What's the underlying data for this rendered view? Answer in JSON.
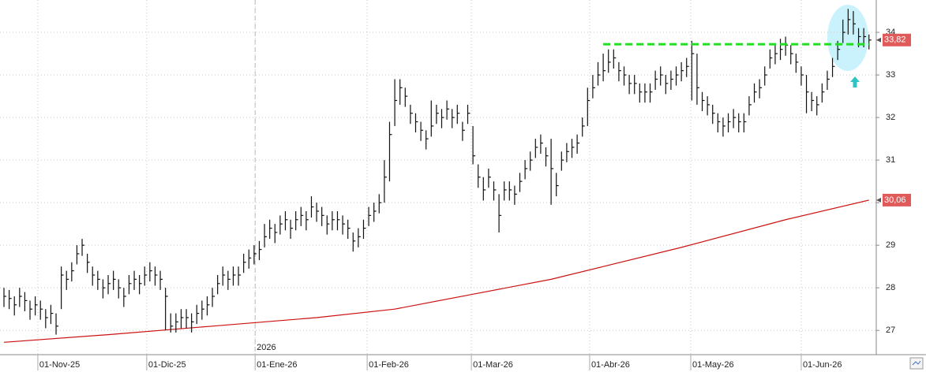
{
  "chart_data": {
    "type": "ohlc",
    "xlim": [
      -0.76,
      167.4
    ],
    "ylim": [
      26.43,
      34.76
    ],
    "yticks": [
      27,
      28,
      29,
      30,
      31,
      32,
      33,
      34
    ],
    "xticks": [
      {
        "value": 6.5,
        "label": "01-Nov-25"
      },
      {
        "value": 27.4,
        "label": "01-Dic-25"
      },
      {
        "value": 48.2,
        "label": "01-Ene-26"
      },
      {
        "value": 69.7,
        "label": "01-Feb-26"
      },
      {
        "value": 89.7,
        "label": "01-Mar-26"
      },
      {
        "value": 112.4,
        "label": "01-Abr-26"
      },
      {
        "value": 131.8,
        "label": "01-May-26"
      },
      {
        "value": 153,
        "label": "01-Jun-26"
      }
    ],
    "grid": true,
    "year_marker": {
      "x": 48.2,
      "label": "2026"
    },
    "price": {
      "color": "#111111",
      "last_label": "33,82",
      "high": [
        28.0,
        27.95,
        27.8,
        28.0,
        27.9,
        27.7,
        27.8,
        27.7,
        27.5,
        27.6,
        27.4,
        28.5,
        28.4,
        28.6,
        29.0,
        29.15,
        28.8,
        28.5,
        28.4,
        28.2,
        28.3,
        28.4,
        28.2,
        28.0,
        28.3,
        28.4,
        28.3,
        28.5,
        28.6,
        28.5,
        28.4,
        28.0,
        27.4,
        27.4,
        27.5,
        27.5,
        27.4,
        27.6,
        27.7,
        27.8,
        28.0,
        28.3,
        28.5,
        28.4,
        28.5,
        28.5,
        28.8,
        28.9,
        29.0,
        29.1,
        29.5,
        29.6,
        29.5,
        29.7,
        29.8,
        29.6,
        29.8,
        29.9,
        29.8,
        30.15,
        30.0,
        29.9,
        29.7,
        29.8,
        29.8,
        29.7,
        29.6,
        29.3,
        29.4,
        29.6,
        29.9,
        30.0,
        30.2,
        31.0,
        31.9,
        32.9,
        32.9,
        32.7,
        32.3,
        32.1,
        31.9,
        31.7,
        32.4,
        32.3,
        32.2,
        32.4,
        32.2,
        32.3,
        31.9,
        32.3,
        31.8,
        30.9,
        30.6,
        30.8,
        30.5,
        30.2,
        30.5,
        30.5,
        30.4,
        30.7,
        31.0,
        31.2,
        31.5,
        31.6,
        31.3,
        31.5,
        30.7,
        31.2,
        31.4,
        31.5,
        31.6,
        32.0,
        32.7,
        33.0,
        33.3,
        33.5,
        33.6,
        33.6,
        33.3,
        33.2,
        33.0,
        33.0,
        32.8,
        32.8,
        32.8,
        33.1,
        33.2,
        33.0,
        33.1,
        33.2,
        33.3,
        33.4,
        33.8,
        33.5,
        32.6,
        32.5,
        32.3,
        32.1,
        32.0,
        32.1,
        32.2,
        32.1,
        32.1,
        32.5,
        32.8,
        32.9,
        33.2,
        33.6,
        33.7,
        33.85,
        33.9,
        33.7,
        33.5,
        33.2,
        33.0,
        32.6,
        32.5,
        32.8,
        33.1,
        33.4,
        33.8,
        34.3,
        34.55,
        34.5,
        34.1,
        34.1,
        33.95
      ],
      "low": [
        27.55,
        27.5,
        27.35,
        27.55,
        27.45,
        27.25,
        27.35,
        27.25,
        27.05,
        27.15,
        26.9,
        27.5,
        27.95,
        28.15,
        28.55,
        28.75,
        28.35,
        28.05,
        27.95,
        27.75,
        27.85,
        27.95,
        27.75,
        27.55,
        27.85,
        27.95,
        27.85,
        28.05,
        28.15,
        28.05,
        27.95,
        27.0,
        26.95,
        26.95,
        27.05,
        27.05,
        26.95,
        27.15,
        27.25,
        27.35,
        27.55,
        27.85,
        28.05,
        27.95,
        28.05,
        28.05,
        28.35,
        28.45,
        28.55,
        28.65,
        28.95,
        29.15,
        29.05,
        29.25,
        29.35,
        29.15,
        29.35,
        29.45,
        29.35,
        29.65,
        29.55,
        29.45,
        29.25,
        29.35,
        29.35,
        29.25,
        29.15,
        28.85,
        28.95,
        29.15,
        29.45,
        29.55,
        29.75,
        30.0,
        30.5,
        31.8,
        32.3,
        32.25,
        31.85,
        31.65,
        31.45,
        31.25,
        31.55,
        31.85,
        31.75,
        31.95,
        31.75,
        31.85,
        31.45,
        31.85,
        30.9,
        30.35,
        30.05,
        30.35,
        30.05,
        29.3,
        30.05,
        30.05,
        29.95,
        30.25,
        30.55,
        30.75,
        31.05,
        31.15,
        30.85,
        29.95,
        30.15,
        30.75,
        30.95,
        31.05,
        31.15,
        31.55,
        31.8,
        32.45,
        32.75,
        32.85,
        33.05,
        33.15,
        32.85,
        32.75,
        32.55,
        32.55,
        32.35,
        32.35,
        32.35,
        32.65,
        32.75,
        32.55,
        32.65,
        32.75,
        32.85,
        32.95,
        32.4,
        32.3,
        32.15,
        32.05,
        31.85,
        31.65,
        31.55,
        31.65,
        31.75,
        31.65,
        31.65,
        32.05,
        32.35,
        32.45,
        32.75,
        33.15,
        33.25,
        33.35,
        33.45,
        33.25,
        33.05,
        32.75,
        32.1,
        32.15,
        32.05,
        32.35,
        32.65,
        32.95,
        33.35,
        33.75,
        33.95,
        33.95,
        33.65,
        33.65,
        33.6
      ],
      "close": [
        27.8,
        27.75,
        27.6,
        27.8,
        27.7,
        27.5,
        27.6,
        27.5,
        27.3,
        27.4,
        27.1,
        28.3,
        28.2,
        28.4,
        28.8,
        29.0,
        28.6,
        28.3,
        28.2,
        28.0,
        28.1,
        28.2,
        28.0,
        27.8,
        28.1,
        28.2,
        28.1,
        28.3,
        28.4,
        28.3,
        28.2,
        27.8,
        27.1,
        27.2,
        27.3,
        27.3,
        27.2,
        27.4,
        27.5,
        27.6,
        27.8,
        28.1,
        28.3,
        28.2,
        28.3,
        28.3,
        28.6,
        28.7,
        28.8,
        28.9,
        29.2,
        29.4,
        29.3,
        29.5,
        29.6,
        29.4,
        29.6,
        29.7,
        29.6,
        29.9,
        29.8,
        29.7,
        29.5,
        29.6,
        29.6,
        29.5,
        29.4,
        29.1,
        29.2,
        29.4,
        29.7,
        29.8,
        30.0,
        30.6,
        31.6,
        32.4,
        32.7,
        32.5,
        32.1,
        31.9,
        31.7,
        31.5,
        31.8,
        32.1,
        32.0,
        32.2,
        32.0,
        32.1,
        31.7,
        32.1,
        31.1,
        30.6,
        30.3,
        30.6,
        30.3,
        29.7,
        30.3,
        30.3,
        30.2,
        30.5,
        30.8,
        31.0,
        31.3,
        31.4,
        31.1,
        30.8,
        30.4,
        31.0,
        31.2,
        31.3,
        31.4,
        31.8,
        32.4,
        32.7,
        33.0,
        33.1,
        33.3,
        33.4,
        33.1,
        33.0,
        32.8,
        32.8,
        32.6,
        32.6,
        32.6,
        32.9,
        33.0,
        32.8,
        32.9,
        33.0,
        33.1,
        33.2,
        33.5,
        32.7,
        32.4,
        32.3,
        32.1,
        31.9,
        31.8,
        31.9,
        32.0,
        31.9,
        31.9,
        32.3,
        32.6,
        32.7,
        33.0,
        33.4,
        33.5,
        33.6,
        33.7,
        33.5,
        33.3,
        33.0,
        32.6,
        32.4,
        32.3,
        32.6,
        32.9,
        33.2,
        33.6,
        34.0,
        34.3,
        34.2,
        33.9,
        33.9,
        33.82
      ]
    },
    "moving_average": {
      "color": "#cc1111",
      "last_label": "30,06",
      "x": [
        0,
        20,
        40,
        60,
        75,
        90,
        105,
        115,
        130,
        150,
        166
      ],
      "values": [
        26.72,
        26.9,
        27.1,
        27.3,
        27.5,
        27.85,
        28.2,
        28.5,
        28.95,
        29.6,
        30.06
      ]
    },
    "resistance": {
      "value": 33.72,
      "x": [
        115,
        166
      ],
      "color": "#22dd22"
    }
  }
}
